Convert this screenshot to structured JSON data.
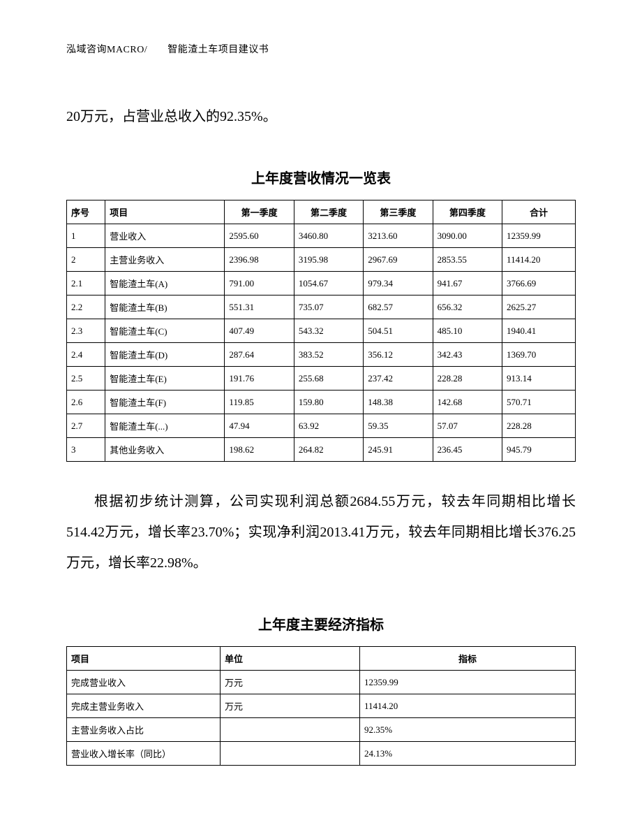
{
  "header": {
    "text": "泓域咨询MACRO/　　智能渣土车项目建议书"
  },
  "intro_text": "20万元，占营业总收入的92.35%。",
  "revenue_table": {
    "title": "上年度营收情况一览表",
    "columns": [
      "序号",
      "项目",
      "第一季度",
      "第二季度",
      "第三季度",
      "第四季度",
      "合计"
    ],
    "rows": [
      [
        "1",
        "营业收入",
        "2595.60",
        "3460.80",
        "3213.60",
        "3090.00",
        "12359.99"
      ],
      [
        "2",
        "主营业务收入",
        "2396.98",
        "3195.98",
        "2967.69",
        "2853.55",
        "11414.20"
      ],
      [
        "2.1",
        "智能渣土车(A)",
        "791.00",
        "1054.67",
        "979.34",
        "941.67",
        "3766.69"
      ],
      [
        "2.2",
        "智能渣土车(B)",
        "551.31",
        "735.07",
        "682.57",
        "656.32",
        "2625.27"
      ],
      [
        "2.3",
        "智能渣土车(C)",
        "407.49",
        "543.32",
        "504.51",
        "485.10",
        "1940.41"
      ],
      [
        "2.4",
        "智能渣土车(D)",
        "287.64",
        "383.52",
        "356.12",
        "342.43",
        "1369.70"
      ],
      [
        "2.5",
        "智能渣土车(E)",
        "191.76",
        "255.68",
        "237.42",
        "228.28",
        "913.14"
      ],
      [
        "2.6",
        "智能渣土车(F)",
        "119.85",
        "159.80",
        "148.38",
        "142.68",
        "570.71"
      ],
      [
        "2.7",
        "智能渣土车(...)",
        "47.94",
        "63.92",
        "59.35",
        "57.07",
        "228.28"
      ],
      [
        "3",
        "其他业务收入",
        "198.62",
        "264.82",
        "245.91",
        "236.45",
        "945.79"
      ]
    ]
  },
  "body_text": "根据初步统计测算，公司实现利润总额2684.55万元，较去年同期相比增长514.42万元，增长率23.70%；实现净利润2013.41万元，较去年同期相比增长376.25万元，增长率22.98%。",
  "indicator_table": {
    "title": "上年度主要经济指标",
    "columns": [
      "项目",
      "单位",
      "指标"
    ],
    "rows": [
      [
        "完成营业收入",
        "万元",
        "12359.99"
      ],
      [
        "完成主营业务收入",
        "万元",
        "11414.20"
      ],
      [
        "主营业务收入占比",
        "",
        "92.35%"
      ],
      [
        "营业收入增长率（同比）",
        "",
        "24.13%"
      ]
    ]
  },
  "styles": {
    "background_color": "#ffffff",
    "text_color": "#000000",
    "border_color": "#000000",
    "body_font_size": 20,
    "table_font_size": 13,
    "header_font_size": 14,
    "title_font_size": 20
  }
}
